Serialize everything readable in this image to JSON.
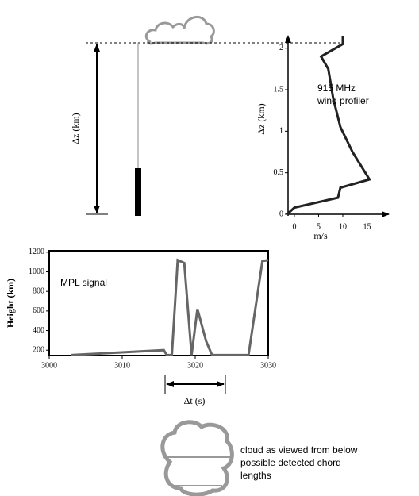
{
  "chart_data": [
    {
      "type": "line",
      "annotation": [
        "915 MHz",
        "wind profiler"
      ],
      "xlabel": "m/s",
      "ylabel": "Δz (km)",
      "x": [
        -1.5,
        0,
        9,
        9.5,
        15.5,
        12,
        9.5,
        8,
        7,
        5.5,
        10,
        10
      ],
      "series": [
        {
          "color": "#222222",
          "values": [
            0,
            0.08,
            0.2,
            0.32,
            0.42,
            0.75,
            1.05,
            1.4,
            1.75,
            1.9,
            2.05,
            2.15
          ]
        }
      ],
      "xlim": [
        -1.3,
        19.5
      ],
      "ylim": [
        0,
        2.15
      ],
      "xticks": [
        0,
        5,
        10,
        15
      ],
      "yticks": [
        0,
        0.5,
        1,
        1.5,
        2
      ],
      "frame": false
    },
    {
      "type": "line",
      "annotation": [
        "MPL signal"
      ],
      "ylabel": "Height (km)",
      "x": [
        3003,
        3015.7,
        3016.1,
        3016.8,
        3017.6,
        3018.5,
        3019.5,
        3020.3,
        3021.5,
        3022.3,
        3027.3,
        3029.2,
        3030
      ],
      "series": [
        {
          "color": "#666666",
          "values": [
            150,
            200,
            150,
            150,
            1120,
            1090,
            150,
            620,
            290,
            150,
            150,
            1110,
            1120
          ]
        }
      ],
      "xlim": [
        3000,
        3030
      ],
      "ylim": [
        145,
        1215
      ],
      "xticks": [
        3000,
        3010,
        3020,
        3030
      ],
      "yticks": [
        200,
        400,
        600,
        800,
        1000,
        1200
      ],
      "frame": true
    }
  ],
  "diagram": {
    "dz_label": "Δz (km)",
    "dt_label": "Δt (s)",
    "cloud_caption": [
      "cloud as viewed from below",
      "possible detected chord",
      "lengths"
    ]
  }
}
